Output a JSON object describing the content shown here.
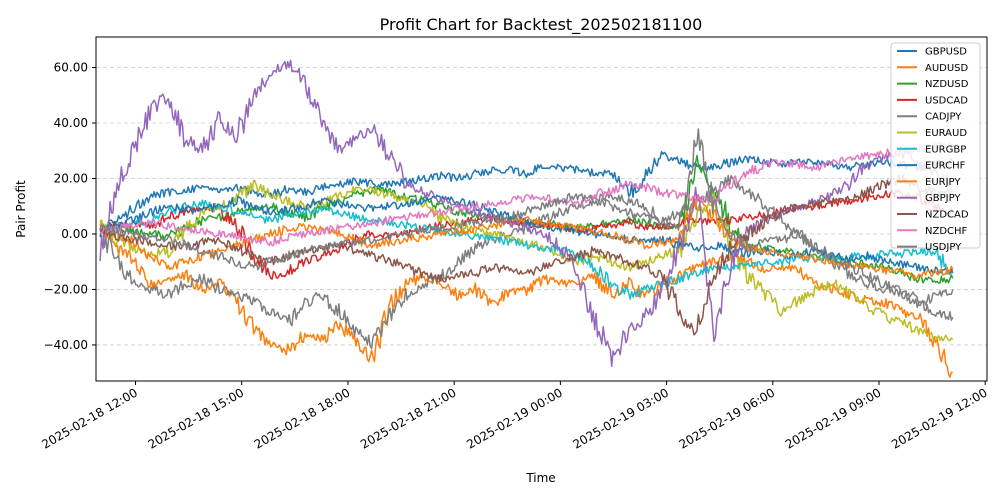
{
  "chart_data": {
    "type": "line",
    "title": "Profit Chart for Backtest_202502181100",
    "xlabel": "Time",
    "ylabel": "Pair Profit",
    "x_range": [
      "2025-02-18 10:53",
      "2025-02-19 12:03"
    ],
    "data_x_range": [
      "2025-02-18 11:00",
      "2025-02-19 11:05"
    ],
    "ylim": [
      -53,
      71
    ],
    "y_ticks": [
      -40,
      -20,
      0,
      20,
      40,
      60
    ],
    "y_tick_labels": [
      "−40.00",
      "−20.00",
      "0.00",
      "20.00",
      "40.00",
      "60.00"
    ],
    "x_ticks": [
      "2025-02-18 12:00",
      "2025-02-18 15:00",
      "2025-02-18 18:00",
      "2025-02-18 21:00",
      "2025-02-19 00:00",
      "2025-02-19 03:00",
      "2025-02-19 06:00",
      "2025-02-19 09:00",
      "2025-02-19 12:00"
    ],
    "x_tick_labels": [
      "2025-02-18 12:00",
      "2025-02-18 15:00",
      "2025-02-18 18:00",
      "2025-02-18 21:00",
      "2025-02-19 00:00",
      "2025-02-19 03:00",
      "2025-02-19 06:00",
      "2025-02-19 09:00",
      "2025-02-19 12:00"
    ],
    "grid": "y-dashed",
    "legend": "top-right",
    "x_interval_minutes": 30,
    "series": [
      {
        "name": "GBPUSD",
        "color": "#1f77b4",
        "values": [
          2,
          5,
          10,
          14,
          15,
          16,
          17,
          16,
          17,
          15,
          14,
          16,
          15,
          17,
          18,
          19,
          18,
          18,
          19,
          20,
          21,
          20,
          22,
          23,
          23,
          22,
          24,
          24,
          23,
          22,
          22,
          14,
          21,
          28,
          26,
          24,
          24,
          26,
          27,
          26,
          25,
          26,
          26,
          25,
          24,
          25,
          26,
          25,
          24,
          25,
          26
        ]
      },
      {
        "name": "AUDUSD",
        "color": "#ff7f0e",
        "values": [
          3,
          -5,
          -10,
          -18,
          -17,
          -15,
          -20,
          -18,
          -25,
          -34,
          -40,
          -42,
          -36,
          -38,
          -33,
          -38,
          -45,
          -25,
          -18,
          -15,
          -18,
          -22,
          -20,
          -25,
          -21,
          -20,
          -16,
          -18,
          -17,
          -15,
          -22,
          -18,
          -23,
          -18,
          -15,
          -12,
          -10,
          -8,
          -10,
          -13,
          -12,
          -13,
          -18,
          -20,
          -22,
          -24,
          -25,
          -28,
          -30,
          -40,
          -50
        ]
      },
      {
        "name": "NZDUSD",
        "color": "#2ca02c",
        "values": [
          3,
          2,
          1,
          0,
          -1,
          2,
          5,
          6,
          8,
          9,
          10,
          8,
          6,
          9,
          12,
          14,
          16,
          15,
          13,
          12,
          10,
          8,
          7,
          6,
          5,
          4,
          4,
          3,
          2,
          3,
          4,
          5,
          4,
          3,
          2,
          28,
          18,
          2,
          -4,
          -5,
          -6,
          -7,
          -8,
          -9,
          -10,
          -11,
          -12,
          -14,
          -16,
          -17,
          -16
        ]
      },
      {
        "name": "USDCAD",
        "color": "#d62728",
        "values": [
          2,
          3,
          4,
          3,
          6,
          8,
          10,
          9,
          3,
          -8,
          -15,
          -14,
          -10,
          -8,
          -5,
          -2,
          0,
          -1,
          0,
          2,
          3,
          4,
          5,
          6,
          5,
          4,
          3,
          2,
          1,
          2,
          3,
          4,
          2,
          3,
          4,
          5,
          4,
          5,
          6,
          7,
          8,
          9,
          10,
          11,
          12,
          13,
          14,
          15,
          13,
          10,
          8
        ]
      },
      {
        "name": "CADJPY",
        "color": "#7f7f7f",
        "values": [
          1,
          -10,
          -18,
          -20,
          -22,
          -18,
          -16,
          -20,
          -22,
          -24,
          -28,
          -32,
          -25,
          -22,
          -28,
          -35,
          -40,
          -30,
          -22,
          -18,
          -15,
          -10,
          -5,
          -2,
          0,
          2,
          5,
          8,
          10,
          12,
          14,
          12,
          10,
          5,
          8,
          10,
          15,
          20,
          15,
          10,
          5,
          0,
          -5,
          -10,
          -15,
          -18,
          -20,
          -22,
          -25,
          -22,
          -20
        ]
      },
      {
        "name": "EURAUD",
        "color": "#bcbd22",
        "values": [
          3,
          -2,
          -5,
          -7,
          -6,
          2,
          8,
          10,
          12,
          18,
          14,
          12,
          10,
          11,
          14,
          16,
          16,
          14,
          12,
          10,
          6,
          3,
          1,
          0,
          -2,
          -3,
          -5,
          -8,
          -10,
          -8,
          -10,
          -12,
          -10,
          -8,
          -5,
          8,
          10,
          -5,
          -15,
          -22,
          -28,
          -24,
          -20,
          -18,
          -22,
          -26,
          -30,
          -32,
          -35,
          -37,
          -38
        ]
      },
      {
        "name": "EURGBP",
        "color": "#17becf",
        "values": [
          2,
          3,
          4,
          5,
          8,
          10,
          11,
          10,
          8,
          6,
          5,
          7,
          8,
          9,
          8,
          6,
          5,
          4,
          3,
          2,
          1,
          0,
          -1,
          -2,
          -3,
          -4,
          -5,
          -6,
          -8,
          -12,
          -18,
          -22,
          -20,
          -18,
          -16,
          -14,
          -12,
          -12,
          -11,
          -10,
          -10,
          -9,
          -9,
          -9,
          -8,
          -8,
          -7,
          -7,
          -6,
          -7,
          -14
        ]
      },
      {
        "name": "EURCHF",
        "color": "#1f77b4",
        "values": [
          0,
          3,
          5,
          8,
          10,
          9,
          8,
          10,
          12,
          10,
          8,
          9,
          10,
          12,
          11,
          10,
          9,
          10,
          11,
          12,
          13,
          12,
          10,
          8,
          6,
          4,
          3,
          2,
          1,
          0,
          -1,
          -2,
          -3,
          -2,
          -4,
          -5,
          -4,
          -6,
          -7,
          -6,
          -8,
          -7,
          -6,
          -8,
          -9,
          -8,
          -10,
          -11,
          -12,
          -13,
          -14
        ]
      },
      {
        "name": "EURJPY",
        "color": "#ff7f0e",
        "values": [
          2,
          0,
          -3,
          -8,
          -12,
          -10,
          -8,
          -6,
          -4,
          -2,
          0,
          2,
          3,
          1,
          0,
          -2,
          -4,
          -3,
          -2,
          -1,
          0,
          1,
          2,
          3,
          4,
          5,
          4,
          3,
          2,
          1,
          0,
          -2,
          -4,
          -3,
          -2,
          12,
          6,
          -2,
          -5,
          -6,
          -7,
          -8,
          -9,
          -10,
          -11,
          -12,
          -13,
          -14,
          -15,
          -14,
          -13
        ]
      },
      {
        "name": "GBPJPY",
        "color": "#9467bd",
        "values": [
          -5,
          18,
          30,
          45,
          50,
          35,
          30,
          42,
          35,
          50,
          58,
          62,
          55,
          40,
          30,
          35,
          38,
          28,
          18,
          15,
          12,
          10,
          8,
          6,
          4,
          2,
          0,
          -5,
          -15,
          -30,
          -45,
          -35,
          -30,
          -20,
          -5,
          15,
          -35,
          -10,
          0,
          5,
          8,
          10,
          12,
          14,
          18,
          25,
          28,
          30,
          25,
          22,
          18
        ]
      },
      {
        "name": "NZDCAD",
        "color": "#8c564b",
        "values": [
          1,
          -1,
          -2,
          -3,
          -4,
          -5,
          -3,
          -2,
          -5,
          -8,
          -10,
          -8,
          -6,
          -5,
          -4,
          -6,
          -8,
          -10,
          -12,
          -15,
          -16,
          -15,
          -14,
          -12,
          -13,
          -14,
          -12,
          -10,
          -8,
          -6,
          -8,
          -10,
          -12,
          -15,
          -30,
          -35,
          -15,
          -5,
          0,
          5,
          8,
          10,
          11,
          12,
          13,
          15,
          18,
          20,
          17,
          14,
          15
        ]
      },
      {
        "name": "NZDCHF",
        "color": "#e377c2",
        "values": [
          1,
          2,
          3,
          4,
          3,
          2,
          1,
          0,
          -1,
          -2,
          -3,
          -1,
          0,
          1,
          2,
          3,
          4,
          5,
          6,
          7,
          8,
          9,
          10,
          11,
          12,
          13,
          13,
          12,
          11,
          14,
          16,
          18,
          17,
          15,
          14,
          13,
          12,
          18,
          22,
          25,
          26,
          25,
          24,
          26,
          27,
          28,
          29,
          30,
          31,
          32,
          32
        ]
      },
      {
        "name": "USDJPY",
        "color": "#7f7f7f",
        "values": [
          2,
          1,
          0,
          -1,
          -2,
          -4,
          -6,
          -8,
          -10,
          -12,
          -10,
          -8,
          -6,
          -5,
          -4,
          -3,
          -2,
          -1,
          0,
          1,
          2,
          3,
          4,
          5,
          6,
          8,
          10,
          12,
          14,
          12,
          10,
          8,
          6,
          4,
          2,
          36,
          10,
          0,
          -5,
          -3,
          -2,
          0,
          -5,
          -8,
          -12,
          -15,
          -18,
          -20,
          -25,
          -28,
          -30
        ]
      }
    ]
  }
}
